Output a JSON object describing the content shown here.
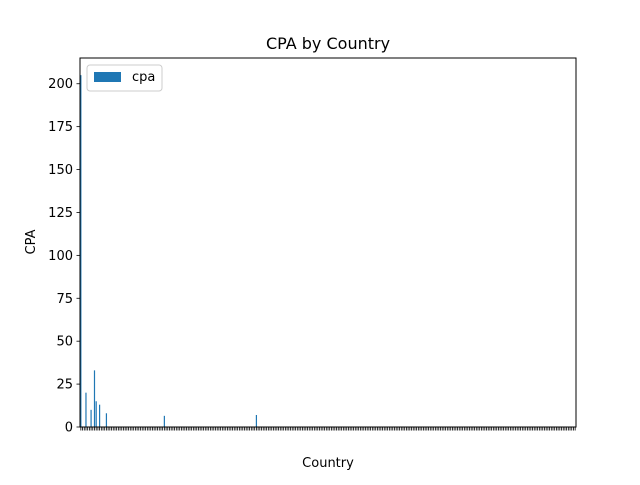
{
  "chart_data": {
    "type": "bar",
    "title": "CPA by Country",
    "xlabel": "Country",
    "ylabel": "CPA",
    "ylim": [
      0,
      215
    ],
    "yticks": [
      0,
      25,
      50,
      75,
      100,
      125,
      150,
      175,
      200
    ],
    "grid": false,
    "legend_position": "top-left",
    "series": [
      {
        "name": "cpa",
        "color": "#1f77b4",
        "values": [
          205,
          0,
          0,
          20,
          0,
          0,
          10,
          0,
          33,
          15,
          0,
          13,
          0,
          0,
          0,
          8,
          0,
          0,
          0,
          0,
          0,
          0,
          0,
          0,
          0,
          0,
          0,
          0,
          0,
          0,
          0,
          0,
          0,
          0,
          0,
          0,
          0,
          0,
          0,
          0,
          0,
          0,
          0,
          0,
          0,
          0,
          0,
          0,
          0,
          6.5,
          0,
          0,
          0,
          0,
          0,
          0,
          0,
          0,
          0,
          0,
          0,
          0,
          0,
          0,
          0,
          0,
          0,
          0,
          0,
          0,
          0,
          0,
          0,
          0,
          0,
          0,
          0,
          0,
          0,
          0,
          0,
          0,
          0,
          0,
          0,
          0,
          0,
          0,
          0,
          0,
          0,
          0,
          0,
          0,
          0,
          0,
          0,
          0,
          0,
          0,
          0,
          0,
          0,
          7,
          0,
          0,
          0,
          0,
          0,
          0,
          0,
          0,
          0,
          0,
          0,
          0,
          0,
          0,
          0,
          0,
          0,
          0,
          0,
          0,
          0,
          0,
          0,
          0,
          0,
          0,
          0,
          0,
          0,
          0,
          0,
          0,
          0,
          0,
          0,
          0,
          0,
          0,
          0,
          0,
          0,
          0,
          0,
          0,
          0,
          0,
          0,
          0,
          0,
          0,
          0,
          0,
          0,
          0,
          0,
          0,
          0,
          0,
          0,
          0,
          0,
          0,
          0,
          0,
          0,
          0,
          0,
          0,
          0,
          0,
          0,
          0,
          0,
          0,
          0,
          0,
          0,
          0,
          0,
          0,
          0,
          0,
          0,
          0,
          0,
          0,
          0,
          0,
          0,
          0,
          0,
          0,
          0,
          0,
          0,
          0,
          0,
          0,
          0,
          0,
          0,
          0,
          0,
          0,
          0,
          0,
          0,
          0,
          0,
          0,
          0,
          0,
          0,
          0,
          0,
          0,
          0,
          0,
          0,
          0,
          0,
          0,
          0,
          0,
          0,
          0,
          0,
          0,
          0,
          0,
          0,
          0,
          0,
          0,
          0,
          0,
          0,
          0,
          0,
          0,
          0,
          0,
          0,
          0,
          0,
          0,
          0,
          0,
          0,
          0,
          0,
          0,
          0,
          0,
          0,
          0,
          0,
          0,
          0,
          0,
          0,
          0,
          0,
          0,
          0,
          0,
          0,
          0,
          0,
          0,
          0,
          0,
          0,
          0,
          0,
          0,
          0,
          0,
          0,
          0,
          0,
          0,
          0,
          0,
          0,
          0,
          0
        ]
      }
    ]
  }
}
